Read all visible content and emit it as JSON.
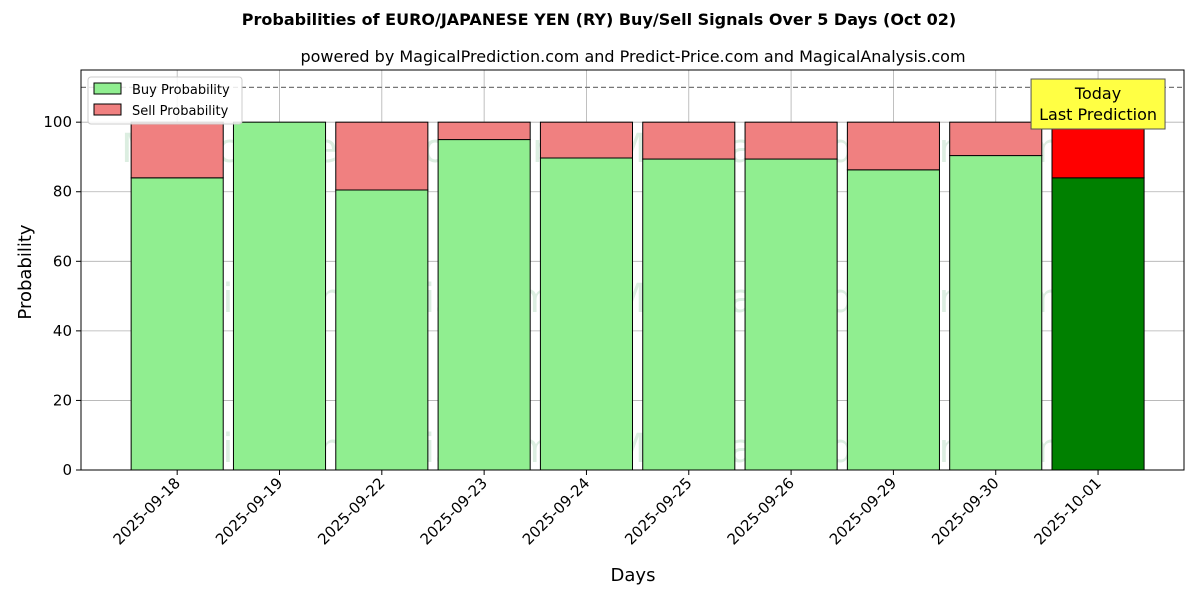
{
  "chart_data": {
    "type": "bar",
    "stacked": true,
    "title": "Probabilities of EURO/JAPANESE YEN (RY) Buy/Sell Signals Over 5 Days (Oct 02)",
    "subtitle": "powered by MagicalPrediction.com and Predict-Price.com and MagicalAnalysis.com",
    "xlabel": "Days",
    "ylabel": "Probability",
    "ylim": [
      0,
      115
    ],
    "yticks": [
      0,
      20,
      40,
      60,
      80,
      100
    ],
    "grid": true,
    "legend_position": "top-left",
    "reference_line": 110,
    "categories": [
      "2025-09-18",
      "2025-09-19",
      "2025-09-22",
      "2025-09-23",
      "2025-09-24",
      "2025-09-25",
      "2025-09-26",
      "2025-09-29",
      "2025-09-30",
      "2025-10-01"
    ],
    "series": [
      {
        "name": "Buy Probability",
        "color": "#90ee90",
        "highlight_color": "#008000",
        "values": [
          84,
          100,
          80.5,
          95,
          89.7,
          89.4,
          89.4,
          86.3,
          90.4,
          84
        ]
      },
      {
        "name": "Sell Probability",
        "color": "#f08080",
        "highlight_color": "#ff0000",
        "values": [
          16,
          0,
          19.5,
          5,
          10.3,
          10.6,
          10.6,
          13.7,
          9.6,
          16
        ]
      }
    ],
    "annotation": {
      "lines": [
        "Today",
        "Last Prediction"
      ],
      "color": "#ffff44"
    },
    "watermarks": [
      "MagicalAnalysis.com",
      "MagicalPrediction.com"
    ]
  }
}
